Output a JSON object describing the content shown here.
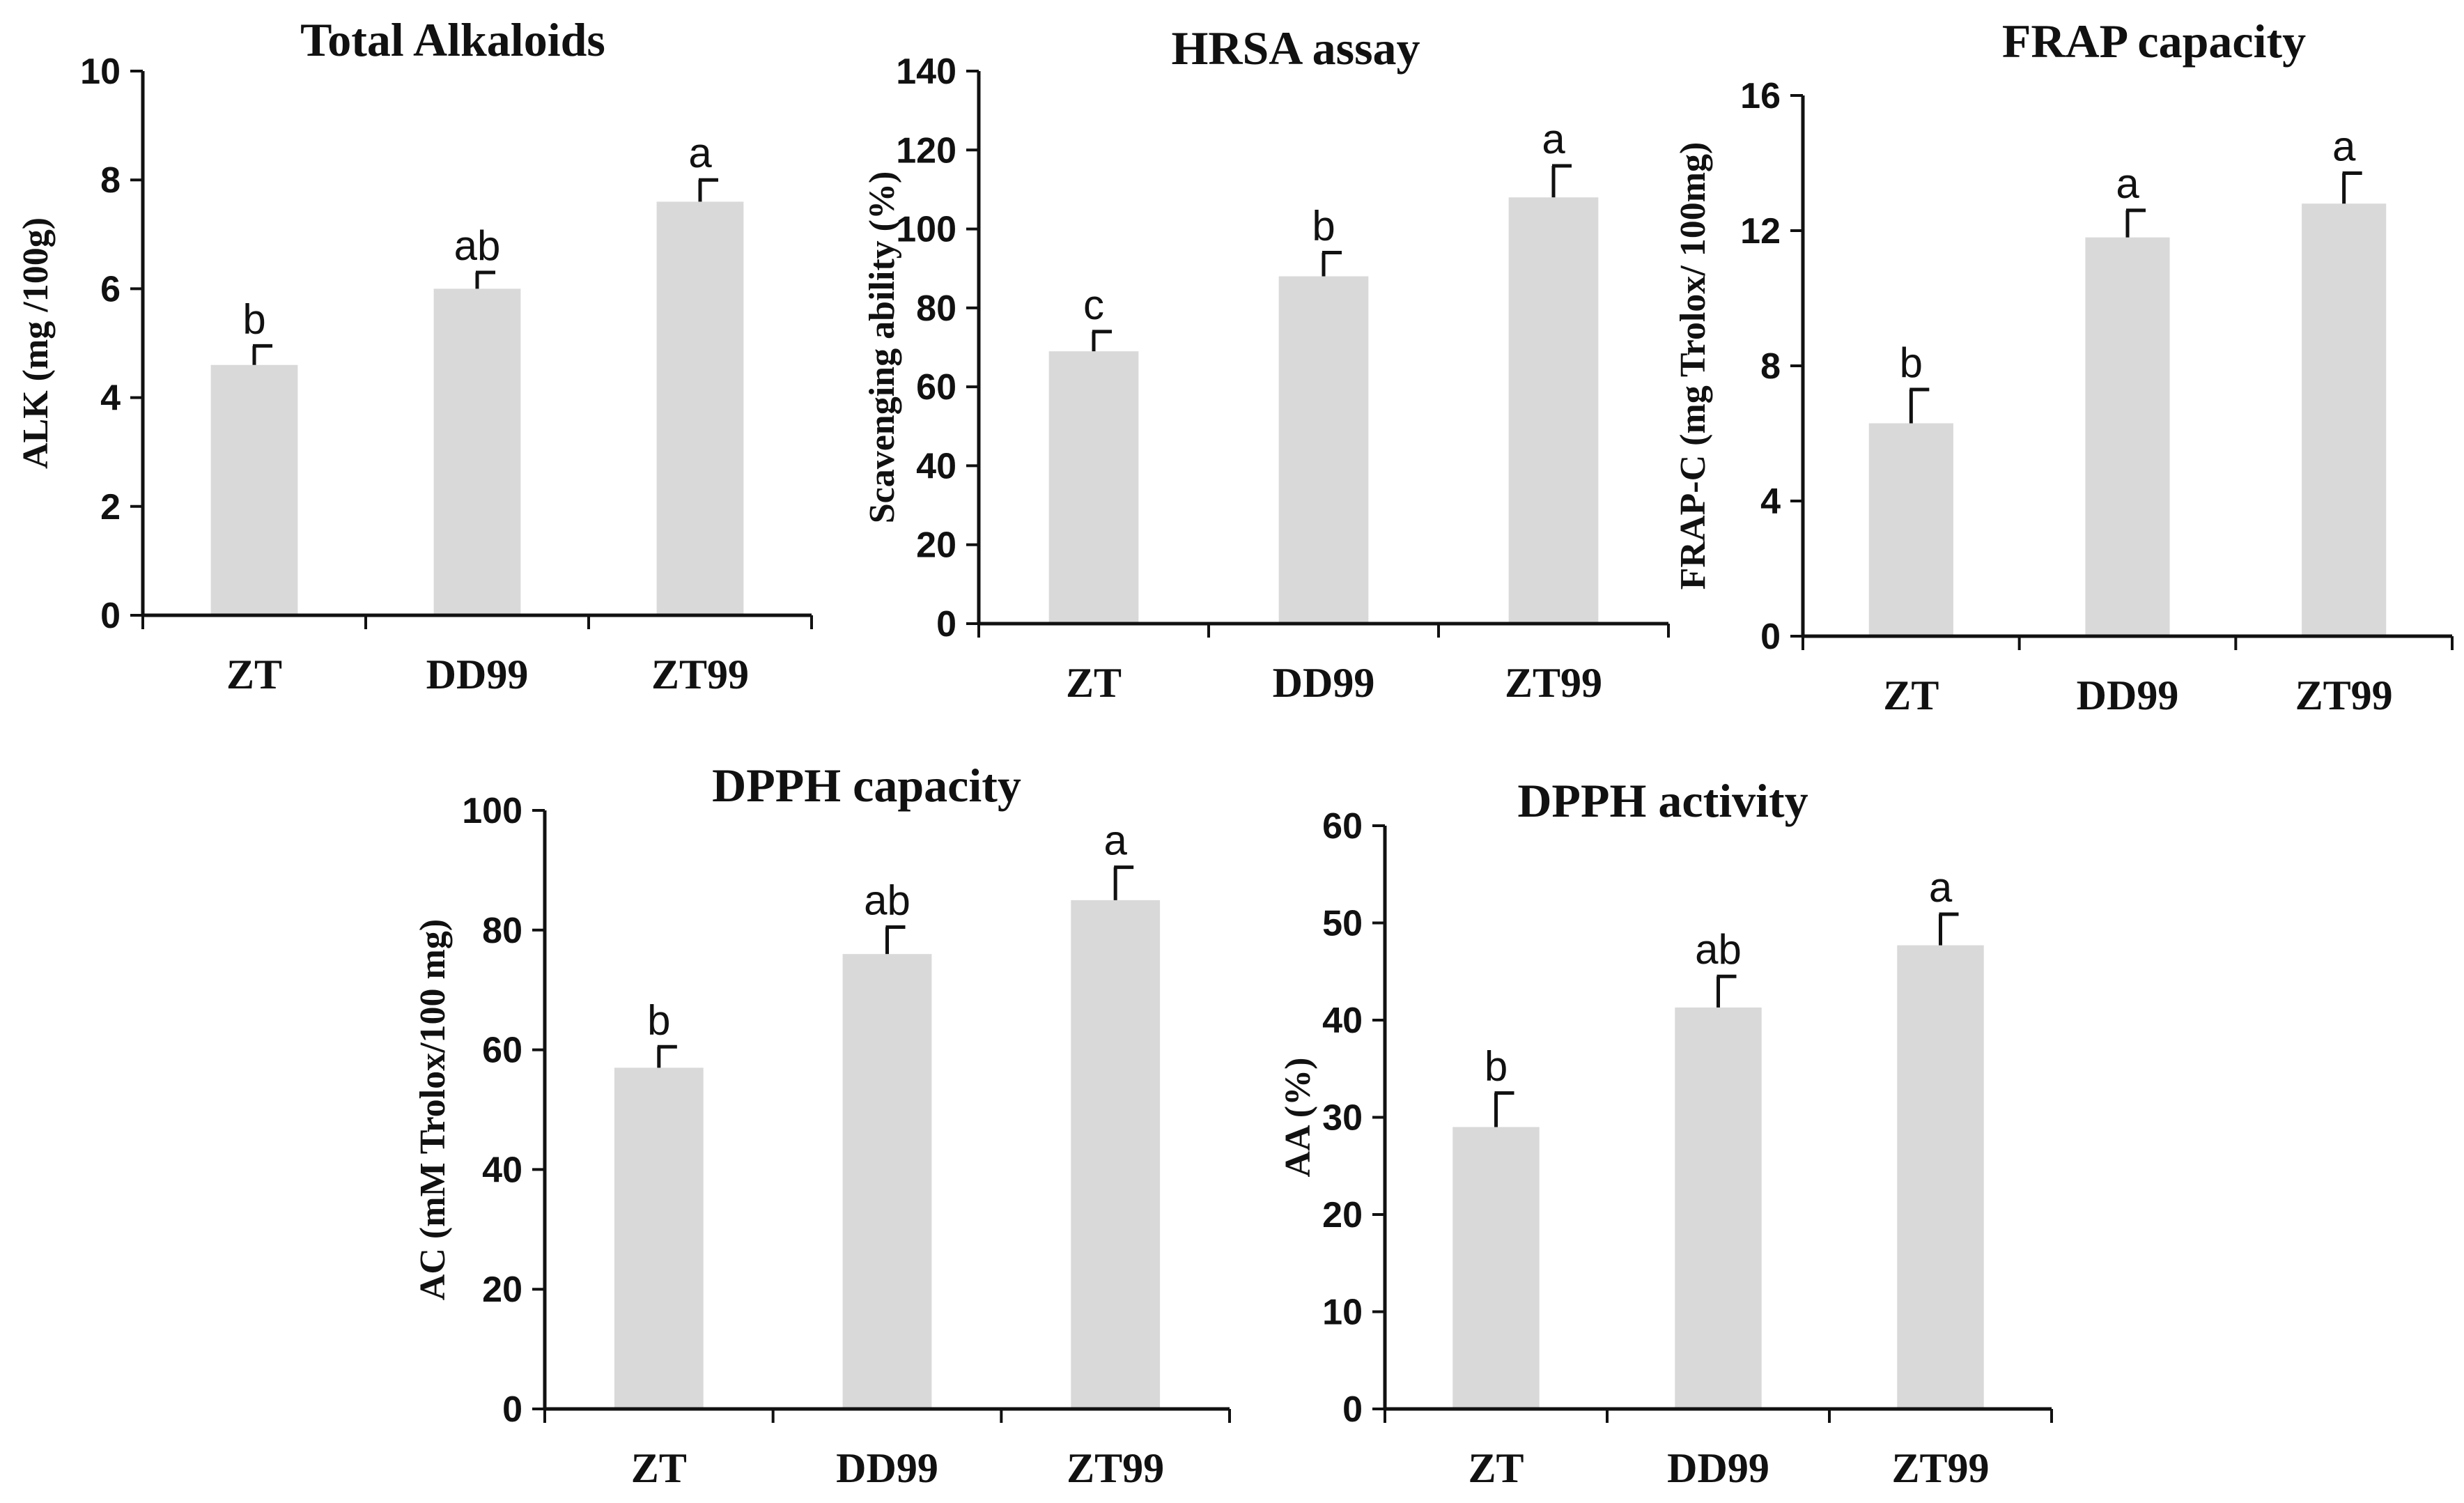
{
  "chart_data": [
    {
      "type": "bar",
      "title": "Total Alkaloids",
      "ylabel": "ALK (mg /100g)",
      "xlabel": "",
      "categories": [
        "ZT",
        "DD99",
        "ZT99"
      ],
      "values": [
        4.6,
        6.0,
        7.6
      ],
      "errors": [
        0.35,
        0.3,
        0.4
      ],
      "significance": [
        "b",
        "ab",
        "a"
      ],
      "ylim": [
        0,
        10
      ],
      "yticks": [
        0,
        2,
        4,
        6,
        8,
        10
      ],
      "ytick_labels": [
        "0",
        "2",
        "4",
        "6",
        "8",
        "10"
      ],
      "bar_color": "#d9d9d9",
      "grid": false
    },
    {
      "type": "bar",
      "title": "HRSA assay",
      "ylabel": "Scavenging ability (%)",
      "xlabel": "",
      "categories": [
        "ZT",
        "DD99",
        "ZT99"
      ],
      "values": [
        69,
        88,
        108
      ],
      "errors": [
        5,
        6,
        8
      ],
      "significance": [
        "c",
        "b",
        "a"
      ],
      "ylim": [
        0,
        140
      ],
      "yticks": [
        0,
        20,
        40,
        60,
        80,
        100,
        120,
        140
      ],
      "ytick_labels": [
        "0",
        "20",
        "40",
        "60",
        "80",
        "100",
        "120",
        "140"
      ],
      "bar_color": "#d9d9d9",
      "grid": false
    },
    {
      "type": "bar",
      "title": "FRAP capacity",
      "ylabel": "FRAP-C (mg Trolox/ 100mg)",
      "xlabel": "",
      "categories": [
        "ZT",
        "DD99",
        "ZT99"
      ],
      "values": [
        6.3,
        11.8,
        12.8
      ],
      "errors": [
        1.0,
        0.8,
        0.9
      ],
      "significance": [
        "b",
        "a",
        "a"
      ],
      "ylim": [
        0,
        16
      ],
      "yticks": [
        0,
        4,
        8,
        12,
        16
      ],
      "ytick_labels": [
        "0",
        "4",
        "8",
        "12",
        "16"
      ],
      "bar_color": "#d9d9d9",
      "grid": false
    },
    {
      "type": "bar",
      "title": "DPPH capacity",
      "ylabel": "AC (mM Trolox/100 mg)",
      "xlabel": "",
      "categories": [
        "ZT",
        "DD99",
        "ZT99"
      ],
      "values": [
        57,
        76,
        85
      ],
      "errors": [
        3.5,
        4.5,
        5.5
      ],
      "significance": [
        "b",
        "ab",
        "a"
      ],
      "ylim": [
        0,
        100
      ],
      "yticks": [
        0,
        20,
        40,
        60,
        80,
        100
      ],
      "ytick_labels": [
        "0",
        "20",
        "40",
        "60",
        "80",
        "100"
      ],
      "bar_color": "#d9d9d9",
      "grid": false
    },
    {
      "type": "bar",
      "title": "DPPH activity",
      "ylabel": "AA (%)",
      "xlabel": "",
      "categories": [
        "ZT",
        "DD99",
        "ZT99"
      ],
      "values": [
        29,
        41.3,
        47.7
      ],
      "errors": [
        3.5,
        3.2,
        3.2
      ],
      "significance": [
        "b",
        "ab",
        "a"
      ],
      "ylim": [
        0,
        60
      ],
      "yticks": [
        0,
        10,
        20,
        30,
        40,
        50,
        60
      ],
      "ytick_labels": [
        "0",
        "10",
        "20",
        "30",
        "40",
        "50",
        "60"
      ],
      "bar_color": "#d9d9d9",
      "grid": false
    }
  ]
}
